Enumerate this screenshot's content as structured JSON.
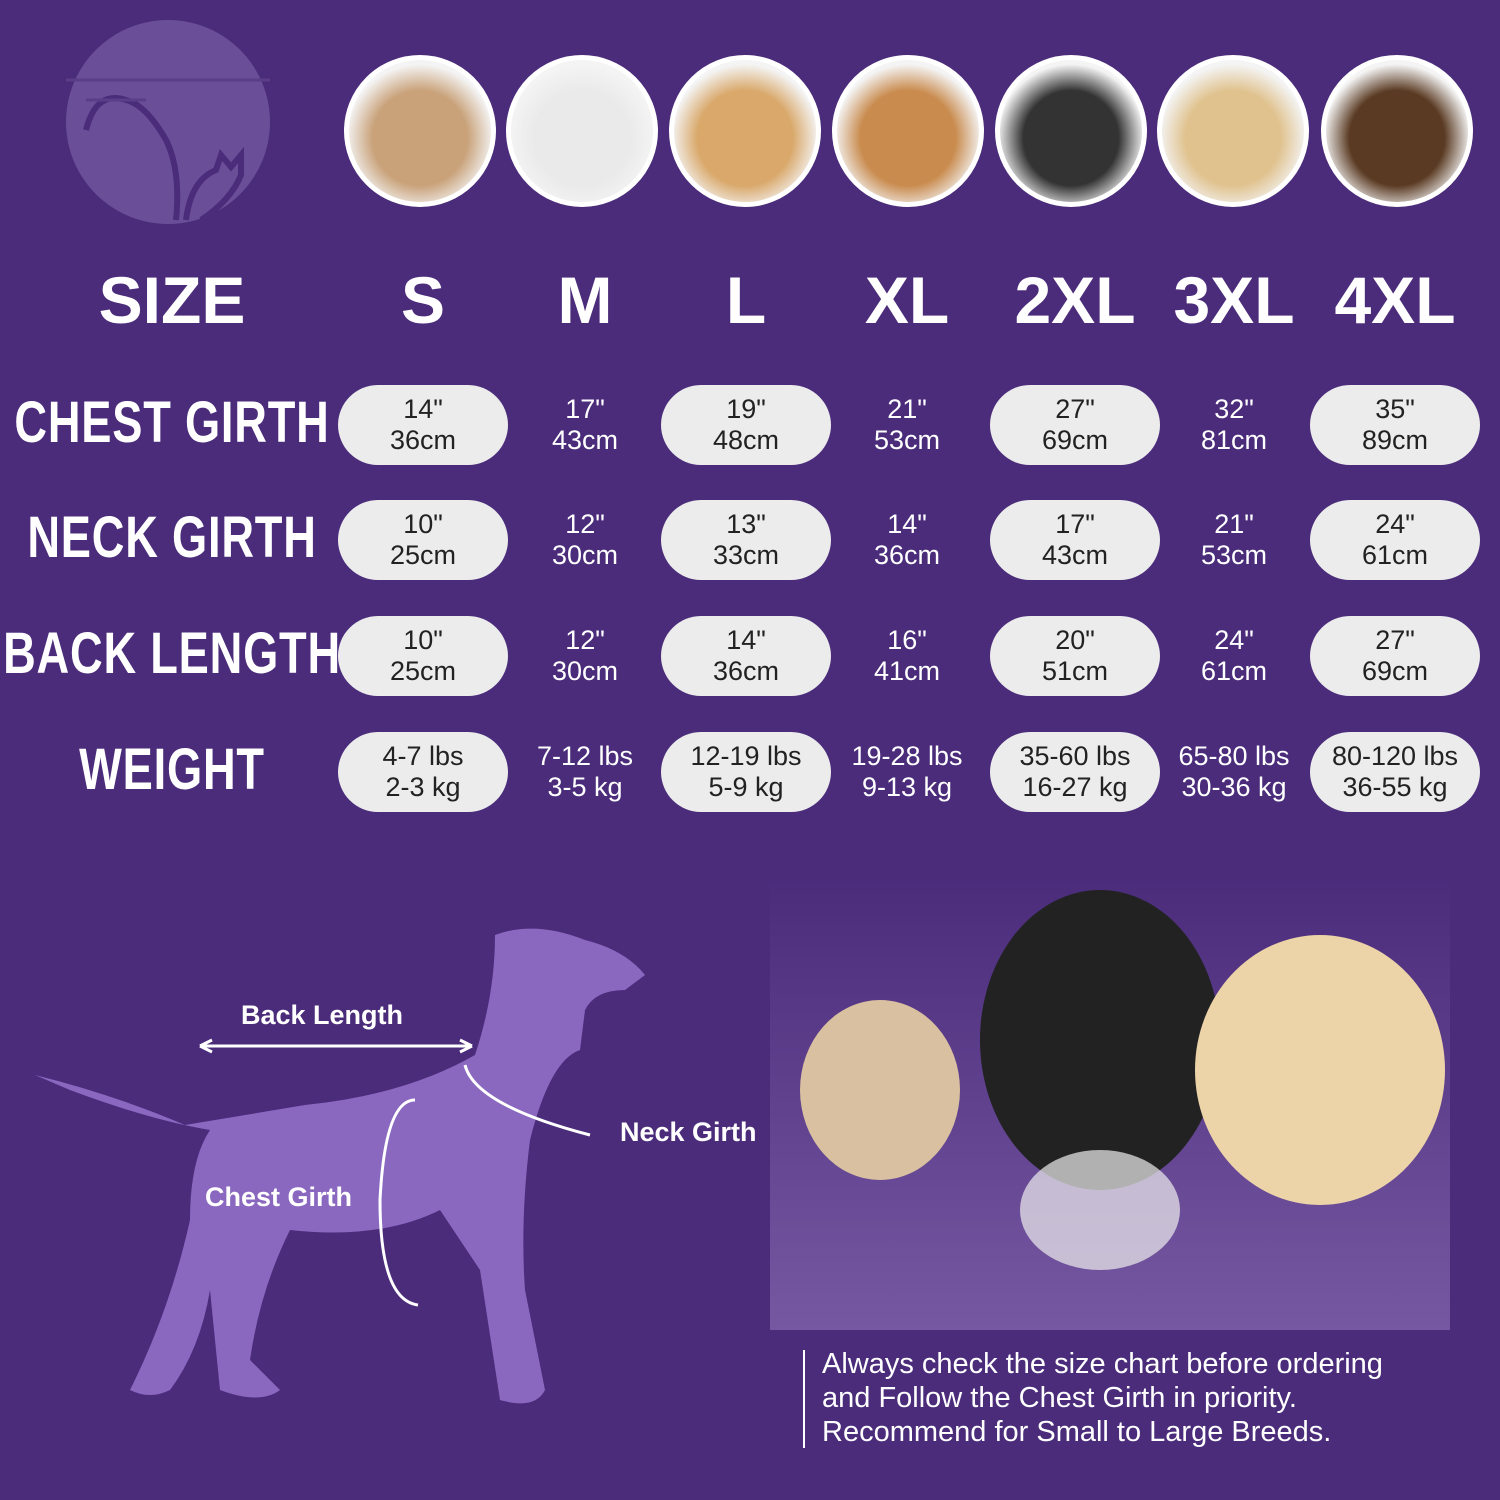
{
  "colors": {
    "background": "#4b2c7b",
    "pill": "#ececec",
    "silhouette": "#8a68c0"
  },
  "logo": {
    "icon": "dog-and-cat-logo"
  },
  "breed_photos": [
    "shih-tzu",
    "boston-terrier",
    "cocker-spaniel",
    "beagle",
    "border-collie",
    "labrador",
    "doberman"
  ],
  "header": {
    "size_label": "SIZE",
    "sizes": [
      "S",
      "M",
      "L",
      "XL",
      "2XL",
      "3XL",
      "4XL"
    ]
  },
  "rows": [
    {
      "label": "CHEST GIRTH",
      "values": [
        [
          "14\"",
          "36cm"
        ],
        [
          "17\"",
          "43cm"
        ],
        [
          "19\"",
          "48cm"
        ],
        [
          "21\"",
          "53cm"
        ],
        [
          "27\"",
          "69cm"
        ],
        [
          "32\"",
          "81cm"
        ],
        [
          "35\"",
          "89cm"
        ]
      ]
    },
    {
      "label": "NECK GIRTH",
      "values": [
        [
          "10\"",
          "25cm"
        ],
        [
          "12\"",
          "30cm"
        ],
        [
          "13\"",
          "33cm"
        ],
        [
          "14\"",
          "36cm"
        ],
        [
          "17\"",
          "43cm"
        ],
        [
          "21\"",
          "53cm"
        ],
        [
          "24\"",
          "61cm"
        ]
      ]
    },
    {
      "label": "BACK LENGTH",
      "values": [
        [
          "10\"",
          "25cm"
        ],
        [
          "12\"",
          "30cm"
        ],
        [
          "14\"",
          "36cm"
        ],
        [
          "16\"",
          "41cm"
        ],
        [
          "20\"",
          "51cm"
        ],
        [
          "24\"",
          "61cm"
        ],
        [
          "27\"",
          "69cm"
        ]
      ]
    },
    {
      "label": "WEIGHT",
      "values": [
        [
          "4-7 lbs",
          "2-3 kg"
        ],
        [
          "7-12 lbs",
          "3-5 kg"
        ],
        [
          "12-19 lbs",
          "5-9 kg"
        ],
        [
          "19-28 lbs",
          "9-13 kg"
        ],
        [
          "35-60 lbs",
          "16-27 kg"
        ],
        [
          "65-80 lbs",
          "30-36 kg"
        ],
        [
          "80-120 lbs",
          "36-55 kg"
        ]
      ]
    }
  ],
  "diagram": {
    "back_length": "Back Length",
    "neck_girth": "Neck Girth",
    "chest_girth": "Chest Girth"
  },
  "note": [
    "Always check the size chart before ordering",
    "and Follow the Chest Girth in priority.",
    "Recommend for Small to Large Breeds."
  ]
}
